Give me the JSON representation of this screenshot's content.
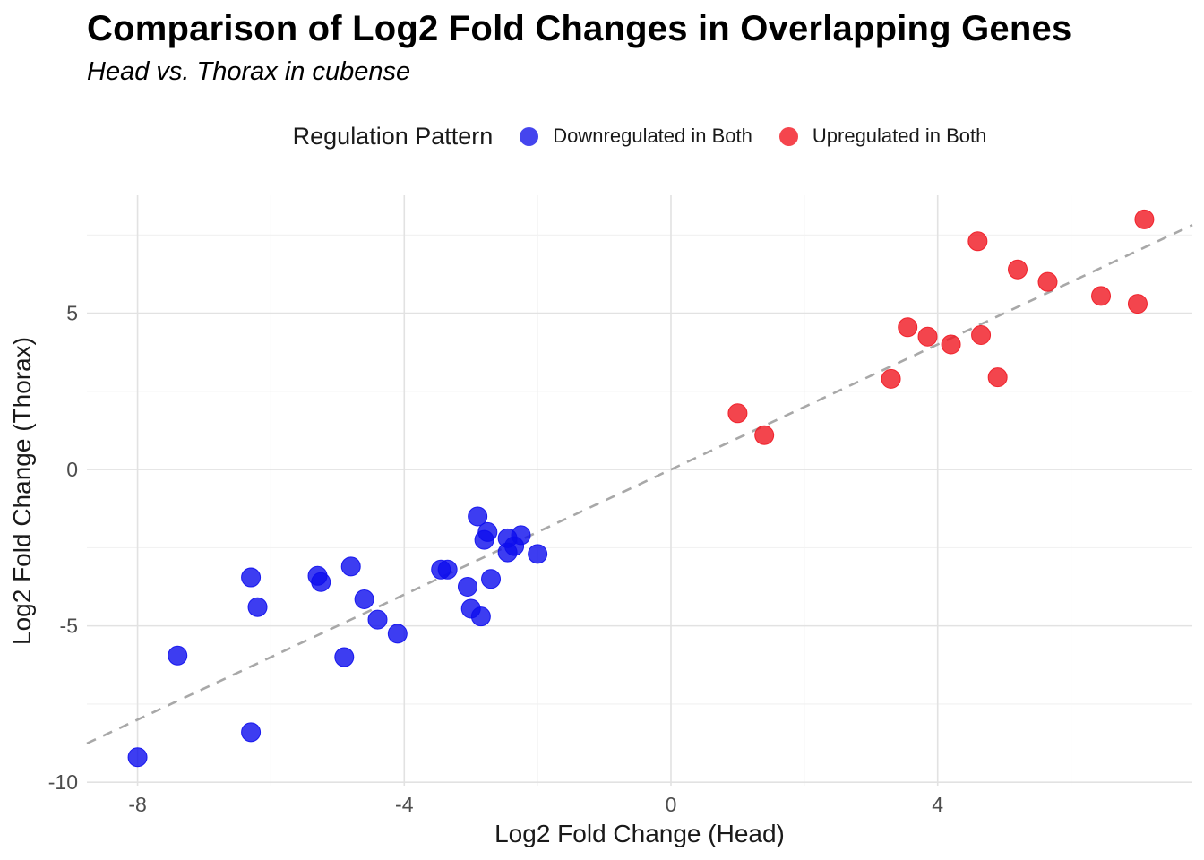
{
  "title": "Comparison of Log2 Fold Changes in Overlapping Genes",
  "subtitle": "Head vs. Thorax in cubense",
  "legend": {
    "title": "Regulation Pattern",
    "items": [
      {
        "label": "Downregulated in Both",
        "color": "#4545ee"
      },
      {
        "label": "Upregulated in Both",
        "color": "#f5454d"
      }
    ]
  },
  "chart_data": {
    "type": "scatter",
    "title": "Comparison of Log2 Fold Changes in Overlapping Genes",
    "subtitle": "Head vs. Thorax in cubense",
    "xlabel": "Log2 Fold Change (Head)",
    "ylabel": "Log2 Fold Change (Thorax)",
    "xlim": [
      -8.76,
      7.82
    ],
    "ylim": [
      -10.11,
      8.77
    ],
    "x_ticks": [
      -8,
      -4,
      0,
      4
    ],
    "y_ticks": [
      -10,
      -5,
      0,
      5
    ],
    "x_minor_ticks": [
      -6,
      -2,
      2,
      6
    ],
    "y_minor_ticks": [
      -7.5,
      -2.5,
      2.5,
      7.5
    ],
    "grid": true,
    "legend_position": "top",
    "reference_line": {
      "kind": "identity y=x",
      "style": "dashed",
      "color": "#a8a8a8"
    },
    "series": [
      {
        "name": "Downregulated in Both",
        "color": "#0d0dee",
        "marker_opacity": 0.8,
        "points": [
          [
            -8.0,
            -9.2
          ],
          [
            -7.4,
            -5.95
          ],
          [
            -6.3,
            -8.4
          ],
          [
            -6.3,
            -3.45
          ],
          [
            -6.2,
            -4.4
          ],
          [
            -5.3,
            -3.4
          ],
          [
            -5.25,
            -3.6
          ],
          [
            -4.9,
            -6.0
          ],
          [
            -4.8,
            -3.1
          ],
          [
            -4.6,
            -4.15
          ],
          [
            -4.4,
            -4.8
          ],
          [
            -4.1,
            -5.25
          ],
          [
            -3.45,
            -3.2
          ],
          [
            -3.35,
            -3.2
          ],
          [
            -3.05,
            -3.75
          ],
          [
            -3.0,
            -4.45
          ],
          [
            -2.85,
            -4.7
          ],
          [
            -2.9,
            -1.5
          ],
          [
            -2.75,
            -2.0
          ],
          [
            -2.8,
            -2.25
          ],
          [
            -2.45,
            -2.2
          ],
          [
            -2.25,
            -2.1
          ],
          [
            -2.35,
            -2.45
          ],
          [
            -2.45,
            -2.65
          ],
          [
            -2.0,
            -2.7
          ],
          [
            -2.7,
            -3.5
          ]
        ]
      },
      {
        "name": "Upregulated in Both",
        "color": "#f01721",
        "marker_opacity": 0.8,
        "points": [
          [
            1.0,
            1.8
          ],
          [
            1.4,
            1.1
          ],
          [
            3.3,
            2.9
          ],
          [
            3.55,
            4.55
          ],
          [
            3.85,
            4.25
          ],
          [
            4.2,
            4.0
          ],
          [
            4.65,
            4.3
          ],
          [
            4.9,
            2.95
          ],
          [
            4.6,
            7.3
          ],
          [
            5.2,
            6.4
          ],
          [
            5.65,
            6.0
          ],
          [
            6.45,
            5.55
          ],
          [
            7.0,
            5.3
          ],
          [
            7.1,
            8.0
          ]
        ]
      }
    ]
  }
}
